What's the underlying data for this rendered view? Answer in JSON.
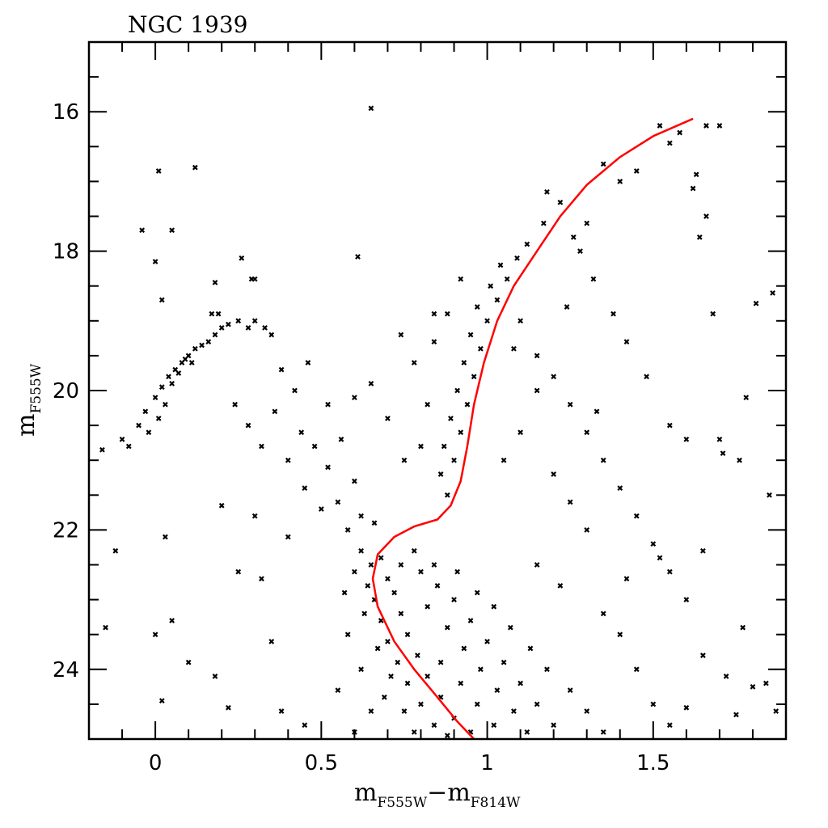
{
  "chart_data": {
    "type": "scatter",
    "title": "NGC 1939",
    "xlabel": {
      "base": "m",
      "sub1": "F555W",
      "minus": "−",
      "base2": "m",
      "sub2": "F814W"
    },
    "ylabel": {
      "base": "m",
      "sub": "F555W"
    },
    "xlim": [
      -0.2,
      1.9
    ],
    "ylim": [
      25,
      15
    ],
    "y_inverted": true,
    "x_major_ticks": [
      0,
      0.5,
      1,
      1.5
    ],
    "x_tick_labels": [
      "0",
      "0.5",
      "1",
      "1.5"
    ],
    "x_minor_step": 0.1,
    "y_major_ticks": [
      16,
      18,
      20,
      22,
      24
    ],
    "y_tick_labels": [
      "16",
      "18",
      "20",
      "22",
      "24"
    ],
    "y_minor_step": 0.5,
    "grid": false,
    "colors": {
      "points": "#000000",
      "isochrone": "#ff0000"
    },
    "series": [
      {
        "name": "stars",
        "marker": "x",
        "points": [
          [
            0.62,
            22.3
          ],
          [
            0.65,
            22.5
          ],
          [
            0.68,
            22.4
          ],
          [
            0.64,
            22.8
          ],
          [
            0.7,
            22.7
          ],
          [
            0.66,
            23.0
          ],
          [
            0.72,
            22.9
          ],
          [
            0.68,
            23.3
          ],
          [
            0.74,
            23.2
          ],
          [
            0.7,
            23.6
          ],
          [
            0.76,
            23.5
          ],
          [
            0.73,
            23.9
          ],
          [
            0.79,
            23.8
          ],
          [
            0.76,
            24.2
          ],
          [
            0.82,
            24.1
          ],
          [
            0.8,
            24.5
          ],
          [
            0.86,
            24.4
          ],
          [
            0.84,
            24.8
          ],
          [
            0.9,
            24.7
          ],
          [
            0.78,
            24.9
          ],
          [
            0.88,
            24.95
          ],
          [
            0.95,
            24.9
          ],
          [
            0.6,
            22.6
          ],
          [
            0.63,
            23.2
          ],
          [
            0.67,
            23.7
          ],
          [
            0.71,
            24.1
          ],
          [
            0.75,
            24.6
          ],
          [
            0.69,
            24.4
          ],
          [
            0.74,
            22.5
          ],
          [
            0.8,
            22.6
          ],
          [
            0.85,
            22.8
          ],
          [
            0.9,
            23.0
          ],
          [
            0.95,
            23.3
          ],
          [
            1.0,
            23.6
          ],
          [
            1.05,
            23.9
          ],
          [
            1.1,
            24.2
          ],
          [
            1.15,
            24.5
          ],
          [
            1.2,
            24.8
          ],
          [
            0.82,
            23.1
          ],
          [
            0.88,
            23.4
          ],
          [
            0.93,
            23.7
          ],
          [
            0.98,
            24.0
          ],
          [
            1.03,
            24.3
          ],
          [
            1.08,
            24.6
          ],
          [
            1.12,
            24.9
          ],
          [
            0.86,
            23.9
          ],
          [
            0.92,
            24.2
          ],
          [
            0.97,
            24.5
          ],
          [
            1.02,
            24.8
          ],
          [
            0.78,
            22.3
          ],
          [
            0.84,
            22.5
          ],
          [
            0.91,
            22.6
          ],
          [
            0.97,
            22.9
          ],
          [
            1.02,
            23.1
          ],
          [
            1.07,
            23.4
          ],
          [
            1.13,
            23.7
          ],
          [
            1.18,
            24.0
          ],
          [
            1.25,
            24.3
          ],
          [
            1.3,
            24.6
          ],
          [
            1.35,
            24.9
          ],
          [
            0.58,
            22.0
          ],
          [
            0.62,
            21.8
          ],
          [
            0.66,
            21.9
          ],
          [
            0.55,
            21.6
          ],
          [
            0.6,
            21.3
          ],
          [
            0.52,
            21.1
          ],
          [
            0.48,
            20.8
          ],
          [
            0.44,
            20.6
          ],
          [
            0.4,
            21.0
          ],
          [
            0.45,
            21.4
          ],
          [
            0.5,
            21.7
          ],
          [
            0.57,
            22.9
          ],
          [
            0.58,
            23.5
          ],
          [
            0.62,
            24.0
          ],
          [
            0.65,
            24.6
          ],
          [
            0.6,
            24.9
          ],
          [
            0.55,
            24.3
          ],
          [
            0.88,
            21.5
          ],
          [
            0.86,
            21.2
          ],
          [
            0.9,
            21.0
          ],
          [
            0.87,
            20.8
          ],
          [
            0.92,
            20.6
          ],
          [
            0.89,
            20.4
          ],
          [
            0.94,
            20.2
          ],
          [
            0.91,
            20.0
          ],
          [
            0.96,
            19.8
          ],
          [
            0.93,
            19.6
          ],
          [
            0.98,
            19.4
          ],
          [
            0.95,
            19.2
          ],
          [
            1.0,
            19.0
          ],
          [
            0.97,
            18.8
          ],
          [
            1.03,
            18.7
          ],
          [
            1.01,
            18.5
          ],
          [
            1.06,
            18.4
          ],
          [
            1.04,
            18.2
          ],
          [
            1.09,
            18.1
          ],
          [
            1.12,
            17.9
          ],
          [
            0.92,
            18.4
          ],
          [
            0.88,
            18.9
          ],
          [
            0.84,
            19.3
          ],
          [
            0.82,
            20.2
          ],
          [
            0.8,
            20.8
          ],
          [
            0.75,
            21.0
          ],
          [
            1.17,
            17.6
          ],
          [
            1.22,
            17.3
          ],
          [
            1.18,
            17.15
          ],
          [
            1.26,
            17.8
          ],
          [
            1.3,
            17.6
          ],
          [
            1.35,
            16.75
          ],
          [
            1.4,
            17.0
          ],
          [
            1.45,
            16.85
          ],
          [
            1.52,
            16.2
          ],
          [
            1.55,
            16.45
          ],
          [
            1.58,
            16.3
          ],
          [
            1.63,
            16.9
          ],
          [
            1.66,
            17.5
          ],
          [
            1.7,
            16.2
          ],
          [
            1.66,
            16.2
          ],
          [
            1.64,
            17.8
          ],
          [
            1.68,
            18.9
          ],
          [
            1.62,
            17.1
          ],
          [
            -0.1,
            20.7
          ],
          [
            -0.08,
            20.8
          ],
          [
            -0.05,
            20.5
          ],
          [
            -0.03,
            20.3
          ],
          [
            0.0,
            20.1
          ],
          [
            0.02,
            19.95
          ],
          [
            0.04,
            19.8
          ],
          [
            0.06,
            19.7
          ],
          [
            0.08,
            19.6
          ],
          [
            0.1,
            19.5
          ],
          [
            0.12,
            19.4
          ],
          [
            0.14,
            19.35
          ],
          [
            0.16,
            19.3
          ],
          [
            0.18,
            19.2
          ],
          [
            0.2,
            19.1
          ],
          [
            0.22,
            19.05
          ],
          [
            0.25,
            19.0
          ],
          [
            0.28,
            19.1
          ],
          [
            0.3,
            19.0
          ],
          [
            0.33,
            19.1
          ],
          [
            0.35,
            19.2
          ],
          [
            0.05,
            19.9
          ],
          [
            0.07,
            19.75
          ],
          [
            0.09,
            19.55
          ],
          [
            0.03,
            20.2
          ],
          [
            -0.02,
            20.6
          ],
          [
            0.01,
            20.4
          ],
          [
            0.11,
            19.6
          ],
          [
            0.17,
            18.9
          ],
          [
            0.19,
            18.9
          ],
          [
            0.29,
            18.4
          ],
          [
            0.3,
            18.4
          ],
          [
            0.26,
            18.1
          ],
          [
            0.18,
            18.45
          ],
          [
            -0.04,
            17.7
          ],
          [
            0.05,
            17.7
          ],
          [
            0.0,
            18.15
          ],
          [
            0.02,
            18.7
          ],
          [
            0.01,
            16.85
          ],
          [
            0.12,
            16.8
          ],
          [
            0.65,
            15.95
          ],
          [
            0.61,
            18.08
          ],
          [
            -0.16,
            20.85
          ],
          [
            -0.12,
            22.3
          ],
          [
            -0.15,
            23.4
          ],
          [
            0.05,
            23.3
          ],
          [
            0.0,
            23.5
          ],
          [
            0.03,
            22.1
          ],
          [
            0.1,
            23.9
          ],
          [
            0.02,
            24.45
          ],
          [
            0.18,
            24.1
          ],
          [
            0.22,
            24.55
          ],
          [
            0.25,
            22.6
          ],
          [
            0.2,
            21.65
          ],
          [
            0.3,
            21.8
          ],
          [
            0.32,
            22.7
          ],
          [
            0.4,
            22.1
          ],
          [
            0.35,
            23.6
          ],
          [
            0.38,
            24.6
          ],
          [
            0.45,
            24.8
          ],
          [
            0.28,
            20.5
          ],
          [
            0.24,
            20.2
          ],
          [
            0.32,
            20.8
          ],
          [
            0.36,
            20.3
          ],
          [
            0.42,
            20.0
          ],
          [
            0.38,
            19.7
          ],
          [
            0.46,
            19.6
          ],
          [
            0.52,
            20.2
          ],
          [
            0.56,
            20.7
          ],
          [
            0.6,
            20.1
          ],
          [
            0.65,
            19.9
          ],
          [
            0.7,
            20.4
          ],
          [
            0.74,
            19.2
          ],
          [
            0.78,
            19.6
          ],
          [
            0.84,
            18.9
          ],
          [
            1.1,
            19.0
          ],
          [
            1.15,
            19.5
          ],
          [
            1.2,
            19.8
          ],
          [
            1.25,
            20.2
          ],
          [
            1.3,
            20.6
          ],
          [
            1.35,
            21.0
          ],
          [
            1.4,
            21.4
          ],
          [
            1.45,
            21.8
          ],
          [
            1.5,
            22.2
          ],
          [
            1.55,
            22.6
          ],
          [
            1.6,
            23.0
          ],
          [
            1.65,
            22.3
          ],
          [
            1.52,
            22.4
          ],
          [
            1.48,
            19.8
          ],
          [
            1.42,
            19.3
          ],
          [
            1.38,
            18.9
          ],
          [
            1.32,
            18.4
          ],
          [
            1.28,
            18.0
          ],
          [
            1.55,
            20.5
          ],
          [
            1.6,
            20.7
          ],
          [
            1.7,
            20.7
          ],
          [
            1.71,
            20.9
          ],
          [
            1.78,
            20.1
          ],
          [
            1.81,
            18.75
          ],
          [
            1.86,
            18.6
          ],
          [
            1.76,
            21.0
          ],
          [
            1.85,
            21.5
          ],
          [
            1.2,
            21.2
          ],
          [
            1.25,
            21.6
          ],
          [
            1.3,
            22.0
          ],
          [
            1.15,
            22.5
          ],
          [
            1.22,
            22.8
          ],
          [
            1.35,
            23.2
          ],
          [
            1.4,
            23.5
          ],
          [
            1.45,
            24.0
          ],
          [
            1.5,
            24.5
          ],
          [
            1.55,
            24.8
          ],
          [
            1.65,
            23.8
          ],
          [
            1.72,
            24.1
          ],
          [
            1.77,
            23.4
          ],
          [
            1.8,
            24.25
          ],
          [
            1.84,
            24.2
          ],
          [
            1.87,
            24.6
          ],
          [
            1.75,
            24.65
          ],
          [
            1.6,
            24.55
          ],
          [
            1.42,
            22.7
          ],
          [
            1.33,
            20.3
          ],
          [
            1.1,
            20.6
          ],
          [
            1.05,
            21.0
          ],
          [
            1.15,
            20.0
          ],
          [
            1.08,
            19.4
          ],
          [
            1.24,
            18.8
          ]
        ]
      },
      {
        "name": "isochrone",
        "type": "line",
        "points": [
          [
            1.62,
            16.1
          ],
          [
            1.5,
            16.35
          ],
          [
            1.4,
            16.65
          ],
          [
            1.3,
            17.05
          ],
          [
            1.22,
            17.5
          ],
          [
            1.15,
            18.0
          ],
          [
            1.08,
            18.5
          ],
          [
            1.03,
            19.0
          ],
          [
            0.99,
            19.6
          ],
          [
            0.96,
            20.2
          ],
          [
            0.94,
            20.8
          ],
          [
            0.92,
            21.3
          ],
          [
            0.89,
            21.65
          ],
          [
            0.85,
            21.85
          ],
          [
            0.78,
            21.95
          ],
          [
            0.72,
            22.1
          ],
          [
            0.67,
            22.35
          ],
          [
            0.655,
            22.7
          ],
          [
            0.67,
            23.1
          ],
          [
            0.72,
            23.6
          ],
          [
            0.78,
            24.0
          ],
          [
            0.85,
            24.4
          ],
          [
            0.91,
            24.75
          ],
          [
            0.96,
            25.0
          ]
        ]
      }
    ]
  }
}
